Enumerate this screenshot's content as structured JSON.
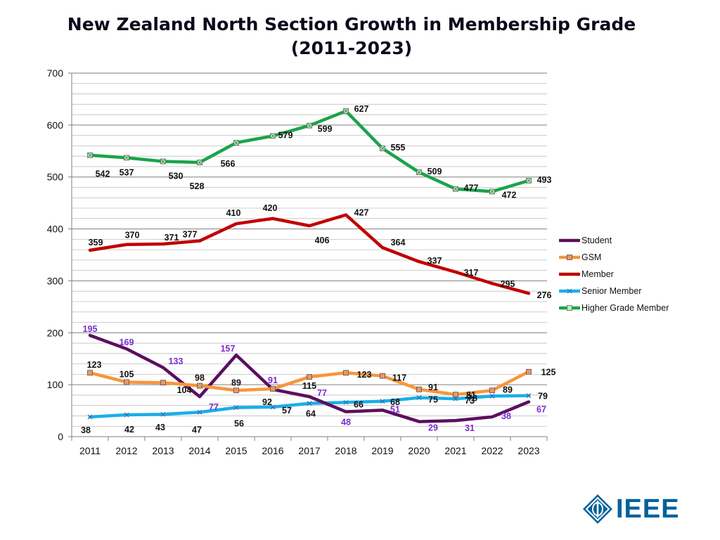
{
  "chart_data": {
    "type": "line",
    "title_line1": "New Zealand North Section Growth in Membership Grade",
    "title_line2": "(2011-2023)",
    "categories": [
      "2011",
      "2012",
      "2013",
      "2014",
      "2015",
      "2016",
      "2017",
      "2018",
      "2019",
      "2020",
      "2021",
      "2022",
      "2023"
    ],
    "ylim": [
      0,
      700
    ],
    "y_major_ticks": [
      0,
      100,
      200,
      300,
      400,
      500,
      600,
      700
    ],
    "grid": true,
    "legend_position": "right",
    "series": [
      {
        "name": "Student",
        "color": "#5b0f5e",
        "marker": "none",
        "label_color": "#7a2bd0",
        "values": [
          195,
          169,
          133,
          77,
          157,
          91,
          77,
          48,
          51,
          29,
          31,
          38,
          67
        ]
      },
      {
        "name": "GSM",
        "color": "#f7963b",
        "marker": "square",
        "label_color": "#111111",
        "values": [
          123,
          105,
          104,
          98,
          89,
          92,
          115,
          123,
          117,
          91,
          81,
          89,
          125
        ]
      },
      {
        "name": "Member",
        "color": "#c00000",
        "marker": "none",
        "label_color": "#111111",
        "values": [
          359,
          370,
          371,
          377,
          410,
          420,
          406,
          427,
          364,
          337,
          317,
          295,
          276
        ]
      },
      {
        "name": "Senior Member",
        "color": "#1aaee6",
        "marker": "x",
        "label_color": "#111111",
        "values": [
          38,
          42,
          43,
          47,
          56,
          57,
          64,
          66,
          68,
          75,
          73,
          78,
          79
        ]
      },
      {
        "name": "Higher Grade Member",
        "color": "#1ba34a",
        "marker": "square-x",
        "label_color": "#111111",
        "values": [
          542,
          537,
          530,
          528,
          566,
          579,
          599,
          627,
          555,
          509,
          477,
          472,
          493
        ]
      }
    ]
  },
  "logo": {
    "text": "IEEE",
    "color": "#00629b",
    "icon": "ieee-diamond-icon"
  }
}
